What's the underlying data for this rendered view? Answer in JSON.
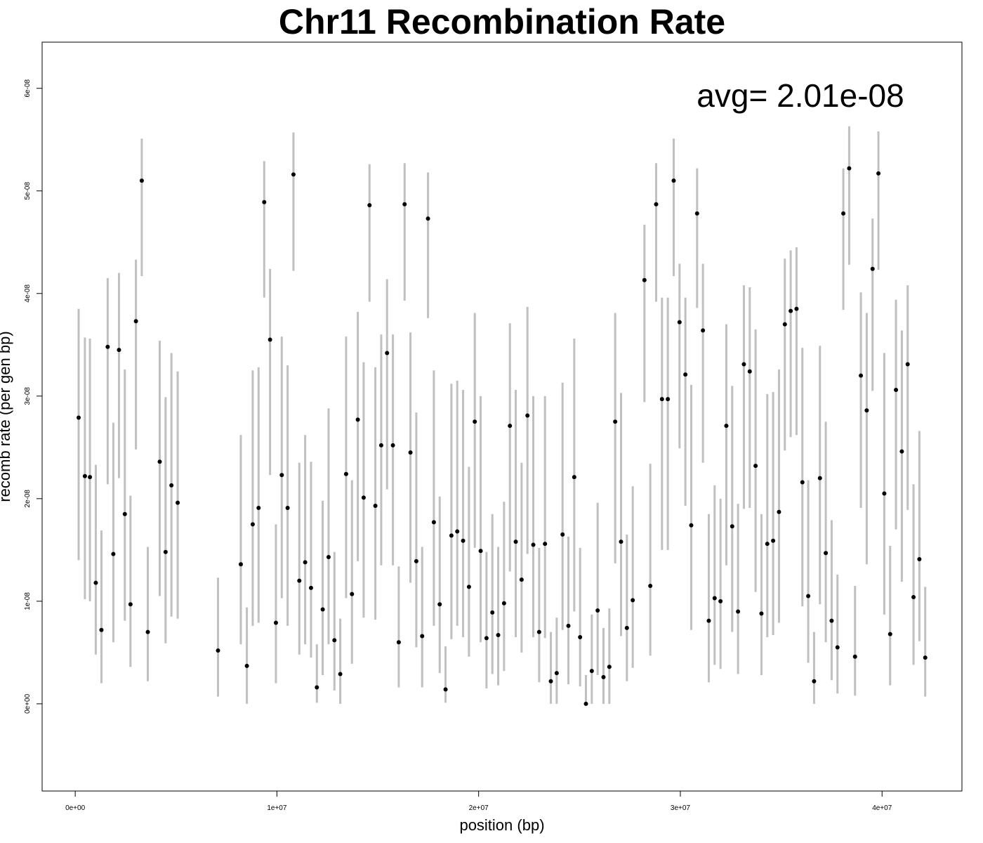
{
  "chart_data": {
    "type": "scatter",
    "title": "Chr11 Recombination Rate",
    "xlabel": "position (bp)",
    "ylabel": "recomb rate (per gen bp)",
    "annotation": "avg= 2.01e-08",
    "xlim": [
      -1640000,
      43960000
    ],
    "ylim": [
      -8.5e-09,
      6.45e-08
    ],
    "x_ticks": [
      {
        "value": 0,
        "label": "0e+00"
      },
      {
        "value": 10000000,
        "label": "1e+07"
      },
      {
        "value": 20000000,
        "label": "2e+07"
      },
      {
        "value": 30000000,
        "label": "3e+07"
      },
      {
        "value": 40000000,
        "label": "4e+07"
      }
    ],
    "y_ticks": [
      {
        "value": 0,
        "label": "0e+00"
      },
      {
        "value": 1e-08,
        "label": "1e-08"
      },
      {
        "value": 2e-08,
        "label": "2e-08"
      },
      {
        "value": 3e-08,
        "label": "3e-08"
      },
      {
        "value": 4e-08,
        "label": "4e-08"
      },
      {
        "value": 5e-08,
        "label": "5e-08"
      },
      {
        "value": 6e-08,
        "label": "6e-08"
      }
    ],
    "grid": false,
    "point_color": "#000000",
    "error_bar_color": "#c0c0c0",
    "points": [
      {
        "x": 170000,
        "y": 2.79e-08,
        "lo": 1.4e-08,
        "hi": 3.85e-08
      },
      {
        "x": 480000,
        "y": 2.22e-08,
        "lo": 1.02e-08,
        "hi": 3.57e-08
      },
      {
        "x": 730000,
        "y": 2.21e-08,
        "lo": 1e-08,
        "hi": 3.56e-08
      },
      {
        "x": 1020000,
        "y": 1.18e-08,
        "lo": 4.8e-09,
        "hi": 2.33e-08
      },
      {
        "x": 1300000,
        "y": 7.2e-09,
        "lo": 2e-09,
        "hi": 1.69e-08
      },
      {
        "x": 1610000,
        "y": 3.48e-08,
        "lo": 2.14e-08,
        "hi": 4.15e-08
      },
      {
        "x": 1890000,
        "y": 1.46e-08,
        "lo": 6e-09,
        "hi": 2.74e-08
      },
      {
        "x": 2170000,
        "y": 3.45e-08,
        "lo": 2.2e-08,
        "hi": 4.2e-08
      },
      {
        "x": 2460000,
        "y": 1.85e-08,
        "lo": 8.1e-09,
        "hi": 3.26e-08
      },
      {
        "x": 2740000,
        "y": 9.7e-09,
        "lo": 3.6e-09,
        "hi": 2.03e-08
      },
      {
        "x": 3010000,
        "y": 3.73e-08,
        "lo": 2.48e-08,
        "hi": 4.33e-08
      },
      {
        "x": 3300000,
        "y": 5.1e-08,
        "lo": 4.17e-08,
        "hi": 5.51e-08
      },
      {
        "x": 3600000,
        "y": 7e-09,
        "lo": 2.2e-09,
        "hi": 1.53e-08
      },
      {
        "x": 4190000,
        "y": 2.36e-08,
        "lo": 1.05e-08,
        "hi": 3.54e-08
      },
      {
        "x": 4480000,
        "y": 1.48e-08,
        "lo": 5.9e-09,
        "hi": 2.99e-08
      },
      {
        "x": 4770000,
        "y": 2.13e-08,
        "lo": 8.5e-09,
        "hi": 3.42e-08
      },
      {
        "x": 5080000,
        "y": 1.96e-08,
        "lo": 8.3e-09,
        "hi": 3.24e-08
      },
      {
        "x": 7080000,
        "y": 5.2e-09,
        "lo": 7e-10,
        "hi": 1.23e-08
      },
      {
        "x": 8210000,
        "y": 1.36e-08,
        "lo": 5.8e-09,
        "hi": 2.62e-08
      },
      {
        "x": 8510000,
        "y": 3.7e-09,
        "lo": 0.0,
        "hi": 9.4e-09
      },
      {
        "x": 8800000,
        "y": 1.75e-08,
        "lo": 7.6e-09,
        "hi": 3.25e-08
      },
      {
        "x": 9090000,
        "y": 1.91e-08,
        "lo": 7.9e-09,
        "hi": 3.28e-08
      },
      {
        "x": 9370000,
        "y": 4.89e-08,
        "lo": 3.96e-08,
        "hi": 5.29e-08
      },
      {
        "x": 9660000,
        "y": 3.55e-08,
        "lo": 2.23e-08,
        "hi": 4.24e-08
      },
      {
        "x": 9950000,
        "y": 7.9e-09,
        "lo": 2e-09,
        "hi": 1.75e-08
      },
      {
        "x": 10240000,
        "y": 2.23e-08,
        "lo": 1.03e-08,
        "hi": 3.58e-08
      },
      {
        "x": 10530000,
        "y": 1.91e-08,
        "lo": 7.6e-09,
        "hi": 3.3e-08
      },
      {
        "x": 10820000,
        "y": 5.16e-08,
        "lo": 4.22e-08,
        "hi": 5.57e-08
      },
      {
        "x": 11110000,
        "y": 1.2e-08,
        "lo": 4.8e-09,
        "hi": 2.35e-08
      },
      {
        "x": 11400000,
        "y": 1.38e-08,
        "lo": 5.8e-09,
        "hi": 2.62e-08
      },
      {
        "x": 11690000,
        "y": 1.13e-08,
        "lo": 4.5e-09,
        "hi": 2.36e-08
      },
      {
        "x": 11980000,
        "y": 1.6e-09,
        "lo": 1e-10,
        "hi": 5.8e-09
      },
      {
        "x": 12270000,
        "y": 9.2e-09,
        "lo": 2.8e-09,
        "hi": 1.98e-08
      },
      {
        "x": 12560000,
        "y": 1.43e-08,
        "lo": 5.8e-09,
        "hi": 2.88e-08
      },
      {
        "x": 12850000,
        "y": 6.2e-09,
        "lo": 1.3e-09,
        "hi": 1.48e-08
      },
      {
        "x": 13140000,
        "y": 2.9e-09,
        "lo": 0.0,
        "hi": 8.3e-09
      },
      {
        "x": 13430000,
        "y": 2.24e-08,
        "lo": 1.03e-08,
        "hi": 3.58e-08
      },
      {
        "x": 13720000,
        "y": 1.07e-08,
        "lo": 3.9e-09,
        "hi": 2.18e-08
      },
      {
        "x": 14010000,
        "y": 2.77e-08,
        "lo": 1.39e-08,
        "hi": 3.82e-08
      },
      {
        "x": 14300000,
        "y": 2.01e-08,
        "lo": 8.4e-09,
        "hi": 3.33e-08
      },
      {
        "x": 14590000,
        "y": 4.86e-08,
        "lo": 3.92e-08,
        "hi": 5.26e-08
      },
      {
        "x": 14880000,
        "y": 1.93e-08,
        "lo": 8.2e-09,
        "hi": 3.28e-08
      },
      {
        "x": 15170000,
        "y": 2.52e-08,
        "lo": 1.35e-08,
        "hi": 3.6e-08
      },
      {
        "x": 15460000,
        "y": 3.42e-08,
        "lo": 2.09e-08,
        "hi": 4.14e-08
      },
      {
        "x": 15750000,
        "y": 2.52e-08,
        "lo": 1.35e-08,
        "hi": 3.6e-08
      },
      {
        "x": 16040000,
        "y": 6e-09,
        "lo": 1.6e-09,
        "hi": 1.34e-08
      },
      {
        "x": 16330000,
        "y": 4.87e-08,
        "lo": 3.93e-08,
        "hi": 5.27e-08
      },
      {
        "x": 16620000,
        "y": 2.45e-08,
        "lo": 1.18e-08,
        "hi": 3.62e-08
      },
      {
        "x": 16910000,
        "y": 1.39e-08,
        "lo": 5.5e-09,
        "hi": 2.84e-08
      },
      {
        "x": 17200000,
        "y": 6.6e-09,
        "lo": 1.6e-09,
        "hi": 1.53e-08
      },
      {
        "x": 17490000,
        "y": 4.73e-08,
        "lo": 3.76e-08,
        "hi": 5.18e-08
      },
      {
        "x": 17780000,
        "y": 1.77e-08,
        "lo": 7.6e-09,
        "hi": 3.25e-08
      },
      {
        "x": 18070000,
        "y": 9.7e-09,
        "lo": 3e-09,
        "hi": 2.02e-08
      },
      {
        "x": 18360000,
        "y": 1.4e-09,
        "lo": 1e-10,
        "hi": 5.6e-09
      },
      {
        "x": 18650000,
        "y": 1.64e-08,
        "lo": 6.3e-09,
        "hi": 3.12e-08
      },
      {
        "x": 18940000,
        "y": 1.68e-08,
        "lo": 7.6e-09,
        "hi": 3.15e-08
      },
      {
        "x": 19230000,
        "y": 1.59e-08,
        "lo": 6.5e-09,
        "hi": 3.06e-08
      },
      {
        "x": 19520000,
        "y": 1.14e-08,
        "lo": 4.6e-09,
        "hi": 2.31e-08
      },
      {
        "x": 19810000,
        "y": 2.75e-08,
        "lo": 1.52e-08,
        "hi": 3.81e-08
      },
      {
        "x": 20100000,
        "y": 1.49e-08,
        "lo": 6e-09,
        "hi": 3e-08
      },
      {
        "x": 20390000,
        "y": 6.4e-09,
        "lo": 1.5e-09,
        "hi": 1.48e-08
      },
      {
        "x": 20680000,
        "y": 8.9e-09,
        "lo": 2.9e-09,
        "hi": 1.85e-08
      },
      {
        "x": 20970000,
        "y": 6.7e-09,
        "lo": 1.8e-09,
        "hi": 1.53e-08
      },
      {
        "x": 21260000,
        "y": 9.8e-09,
        "lo": 3.2e-09,
        "hi": 1.97e-08
      },
      {
        "x": 21550000,
        "y": 2.71e-08,
        "lo": 1.29e-08,
        "hi": 3.71e-08
      },
      {
        "x": 21840000,
        "y": 1.58e-08,
        "lo": 6.5e-09,
        "hi": 3.06e-08
      },
      {
        "x": 22130000,
        "y": 1.21e-08,
        "lo": 5e-09,
        "hi": 2.35e-08
      },
      {
        "x": 22420000,
        "y": 2.81e-08,
        "lo": 1.46e-08,
        "hi": 3.87e-08
      },
      {
        "x": 22710000,
        "y": 1.55e-08,
        "lo": 6.5e-09,
        "hi": 3e-08
      },
      {
        "x": 23000000,
        "y": 7e-09,
        "lo": 2.1e-09,
        "hi": 1.52e-08
      },
      {
        "x": 23290000,
        "y": 1.56e-08,
        "lo": 6.4e-09,
        "hi": 3e-08
      },
      {
        "x": 23580000,
        "y": 2.2e-09,
        "lo": 0.0,
        "hi": 7e-09
      },
      {
        "x": 23870000,
        "y": 3e-09,
        "lo": 0.0,
        "hi": 8.4e-09
      },
      {
        "x": 24160000,
        "y": 1.65e-08,
        "lo": 7.2e-09,
        "hi": 3.13e-08
      },
      {
        "x": 24450000,
        "y": 7.6e-09,
        "lo": 1.9e-09,
        "hi": 1.63e-08
      },
      {
        "x": 24740000,
        "y": 2.21e-08,
        "lo": 9e-09,
        "hi": 3.56e-08
      },
      {
        "x": 25030000,
        "y": 6.5e-09,
        "lo": 1.7e-09,
        "hi": 1.52e-08
      },
      {
        "x": 25320000,
        "y": 0.0,
        "lo": 0.0,
        "hi": 2.8e-09
      },
      {
        "x": 25610000,
        "y": 3.2e-09,
        "lo": 0.0,
        "hi": 8.7e-09
      },
      {
        "x": 25900000,
        "y": 9.1e-09,
        "lo": 2.8e-09,
        "hi": 1.96e-08
      },
      {
        "x": 26190000,
        "y": 2.6e-09,
        "lo": 0.0,
        "hi": 7.4e-09
      },
      {
        "x": 26480000,
        "y": 3.6e-09,
        "lo": 0.0,
        "hi": 9.3e-09
      },
      {
        "x": 26770000,
        "y": 2.75e-08,
        "lo": 1.37e-08,
        "hi": 3.81e-08
      },
      {
        "x": 27060000,
        "y": 1.58e-08,
        "lo": 6.6e-09,
        "hi": 3.03e-08
      },
      {
        "x": 27350000,
        "y": 7.4e-09,
        "lo": 2.2e-09,
        "hi": 1.65e-08
      },
      {
        "x": 27640000,
        "y": 1.01e-08,
        "lo": 3.5e-09,
        "hi": 2.12e-08
      },
      {
        "x": 28220000,
        "y": 4.13e-08,
        "lo": 2.94e-08,
        "hi": 4.67e-08
      },
      {
        "x": 28510000,
        "y": 1.15e-08,
        "lo": 4.7e-09,
        "hi": 2.34e-08
      },
      {
        "x": 28800000,
        "y": 4.87e-08,
        "lo": 3.92e-08,
        "hi": 5.27e-08
      },
      {
        "x": 29090000,
        "y": 2.97e-08,
        "lo": 1.5e-08,
        "hi": 3.96e-08
      },
      {
        "x": 29380000,
        "y": 2.97e-08,
        "lo": 1.5e-08,
        "hi": 3.96e-08
      },
      {
        "x": 29670000,
        "y": 5.1e-08,
        "lo": 4.17e-08,
        "hi": 5.51e-08
      },
      {
        "x": 29960000,
        "y": 3.72e-08,
        "lo": 2.49e-08,
        "hi": 4.29e-08
      },
      {
        "x": 30250000,
        "y": 3.21e-08,
        "lo": 1.93e-08,
        "hi": 3.96e-08
      },
      {
        "x": 30540000,
        "y": 1.74e-08,
        "lo": 7.2e-09,
        "hi": 3.11e-08
      },
      {
        "x": 30830000,
        "y": 4.78e-08,
        "lo": 3.86e-08,
        "hi": 5.22e-08
      },
      {
        "x": 31120000,
        "y": 3.64e-08,
        "lo": 2.35e-08,
        "hi": 4.29e-08
      },
      {
        "x": 31410000,
        "y": 8.1e-09,
        "lo": 2.1e-09,
        "hi": 1.85e-08
      },
      {
        "x": 31700000,
        "y": 1.03e-08,
        "lo": 3.8e-09,
        "hi": 2.13e-08
      },
      {
        "x": 31990000,
        "y": 1e-08,
        "lo": 3.4e-09,
        "hi": 2e-08
      },
      {
        "x": 32280000,
        "y": 2.71e-08,
        "lo": 1.35e-08,
        "hi": 3.7e-08
      },
      {
        "x": 32570000,
        "y": 1.73e-08,
        "lo": 7e-09,
        "hi": 3.1e-08
      },
      {
        "x": 32860000,
        "y": 9e-09,
        "lo": 2.9e-09,
        "hi": 1.95e-08
      },
      {
        "x": 33150000,
        "y": 3.31e-08,
        "lo": 1.9e-08,
        "hi": 4.08e-08
      },
      {
        "x": 33440000,
        "y": 3.24e-08,
        "lo": 1.91e-08,
        "hi": 4.06e-08
      },
      {
        "x": 33730000,
        "y": 2.32e-08,
        "lo": 1.09e-08,
        "hi": 3.65e-08
      },
      {
        "x": 34020000,
        "y": 8.8e-09,
        "lo": 2.8e-09,
        "hi": 1.85e-08
      },
      {
        "x": 34310000,
        "y": 1.56e-08,
        "lo": 6.5e-09,
        "hi": 3.02e-08
      },
      {
        "x": 34600000,
        "y": 1.59e-08,
        "lo": 6.7e-09,
        "hi": 3.04e-08
      },
      {
        "x": 34890000,
        "y": 1.87e-08,
        "lo": 7.9e-09,
        "hi": 3.26e-08
      },
      {
        "x": 35180000,
        "y": 3.7e-08,
        "lo": 2.47e-08,
        "hi": 4.34e-08
      },
      {
        "x": 35470000,
        "y": 3.83e-08,
        "lo": 2.6e-08,
        "hi": 4.42e-08
      },
      {
        "x": 35760000,
        "y": 3.85e-08,
        "lo": 2.62e-08,
        "hi": 4.45e-08
      },
      {
        "x": 36050000,
        "y": 2.16e-08,
        "lo": 9.5e-09,
        "hi": 3.47e-08
      },
      {
        "x": 36340000,
        "y": 1.05e-08,
        "lo": 4e-09,
        "hi": 2.18e-08
      },
      {
        "x": 36630000,
        "y": 2.2e-09,
        "lo": 0.0,
        "hi": 7e-09
      },
      {
        "x": 36920000,
        "y": 2.2e-08,
        "lo": 9.7e-09,
        "hi": 3.49e-08
      },
      {
        "x": 37210000,
        "y": 1.47e-08,
        "lo": 6e-09,
        "hi": 2.75e-08
      },
      {
        "x": 37500000,
        "y": 8.1e-09,
        "lo": 2.3e-09,
        "hi": 1.79e-08
      },
      {
        "x": 37790000,
        "y": 5.5e-09,
        "lo": 1e-09,
        "hi": 1.26e-08
      },
      {
        "x": 38080000,
        "y": 4.78e-08,
        "lo": 3.84e-08,
        "hi": 5.22e-08
      },
      {
        "x": 38370000,
        "y": 5.22e-08,
        "lo": 4.28e-08,
        "hi": 5.63e-08
      },
      {
        "x": 38660000,
        "y": 4.6e-09,
        "lo": 8e-10,
        "hi": 1.15e-08
      },
      {
        "x": 38950000,
        "y": 3.2e-08,
        "lo": 1.91e-08,
        "hi": 4.01e-08
      },
      {
        "x": 39240000,
        "y": 2.86e-08,
        "lo": 1.36e-08,
        "hi": 3.81e-08
      },
      {
        "x": 39530000,
        "y": 4.24e-08,
        "lo": 3.05e-08,
        "hi": 4.73e-08
      },
      {
        "x": 39820000,
        "y": 5.17e-08,
        "lo": 4.23e-08,
        "hi": 5.58e-08
      },
      {
        "x": 40110000,
        "y": 2.05e-08,
        "lo": 8.7e-09,
        "hi": 3.42e-08
      },
      {
        "x": 40400000,
        "y": 6.8e-09,
        "lo": 1.8e-09,
        "hi": 1.54e-08
      },
      {
        "x": 40690000,
        "y": 3.06e-08,
        "lo": 1.7e-08,
        "hi": 3.94e-08
      },
      {
        "x": 40980000,
        "y": 2.46e-08,
        "lo": 1.19e-08,
        "hi": 3.64e-08
      },
      {
        "x": 41270000,
        "y": 3.31e-08,
        "lo": 1.89e-08,
        "hi": 4.08e-08
      },
      {
        "x": 41560000,
        "y": 1.04e-08,
        "lo": 3.8e-09,
        "hi": 2.14e-08
      },
      {
        "x": 41850000,
        "y": 1.41e-08,
        "lo": 6.1e-09,
        "hi": 2.66e-08
      },
      {
        "x": 42140000,
        "y": 4.5e-09,
        "lo": 7e-10,
        "hi": 1.14e-08
      }
    ]
  }
}
